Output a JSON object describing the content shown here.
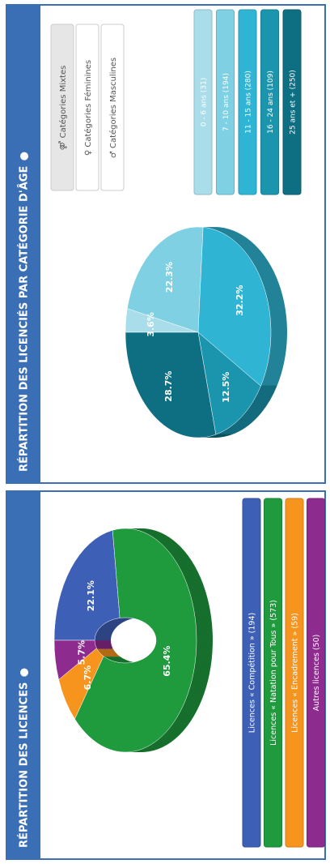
{
  "chart_data": [
    {
      "type": "pie",
      "donut": true,
      "title": "RÉPARTITION DES LICENCES",
      "categories": [
        "Licences « Compétition » (194)",
        "Licences « Natation pour Tous » (573)",
        "Licences « Encadrement » (59)",
        "Autres licences (50)"
      ],
      "values": [
        22.1,
        65.4,
        6.7,
        5.7
      ],
      "value_labels": [
        "22.1%",
        "65.4%",
        "6.7%",
        "5.7%"
      ],
      "colors": [
        "#3d5fb5",
        "#1f9a3d",
        "#f7941d",
        "#8d2b8f"
      ]
    },
    {
      "type": "pie",
      "donut": false,
      "title": "RÉPARTITION DES LICENCIÉS PAR CATÉGORIE D'ÂGE",
      "buttons": [
        "⚤ Catégories Mixtes",
        "♀ Catégories Féminines",
        "♂ Catégories Masculines"
      ],
      "categories": [
        "0 - 6 ans (31)",
        "7 - 10 ans (194)",
        "11 - 15 ans (280)",
        "16 - 24 ans (109)",
        "25 ans et + (250)"
      ],
      "values": [
        3.6,
        22.3,
        32.2,
        12.5,
        28.7
      ],
      "value_labels": [
        "3.6%",
        "22.3%",
        "32.2%",
        "12.5%",
        "28.7%"
      ],
      "colors": [
        "#a8dde9",
        "#7fd0e2",
        "#2fb5d3",
        "#1a95ad",
        "#0f6f82"
      ]
    }
  ]
}
